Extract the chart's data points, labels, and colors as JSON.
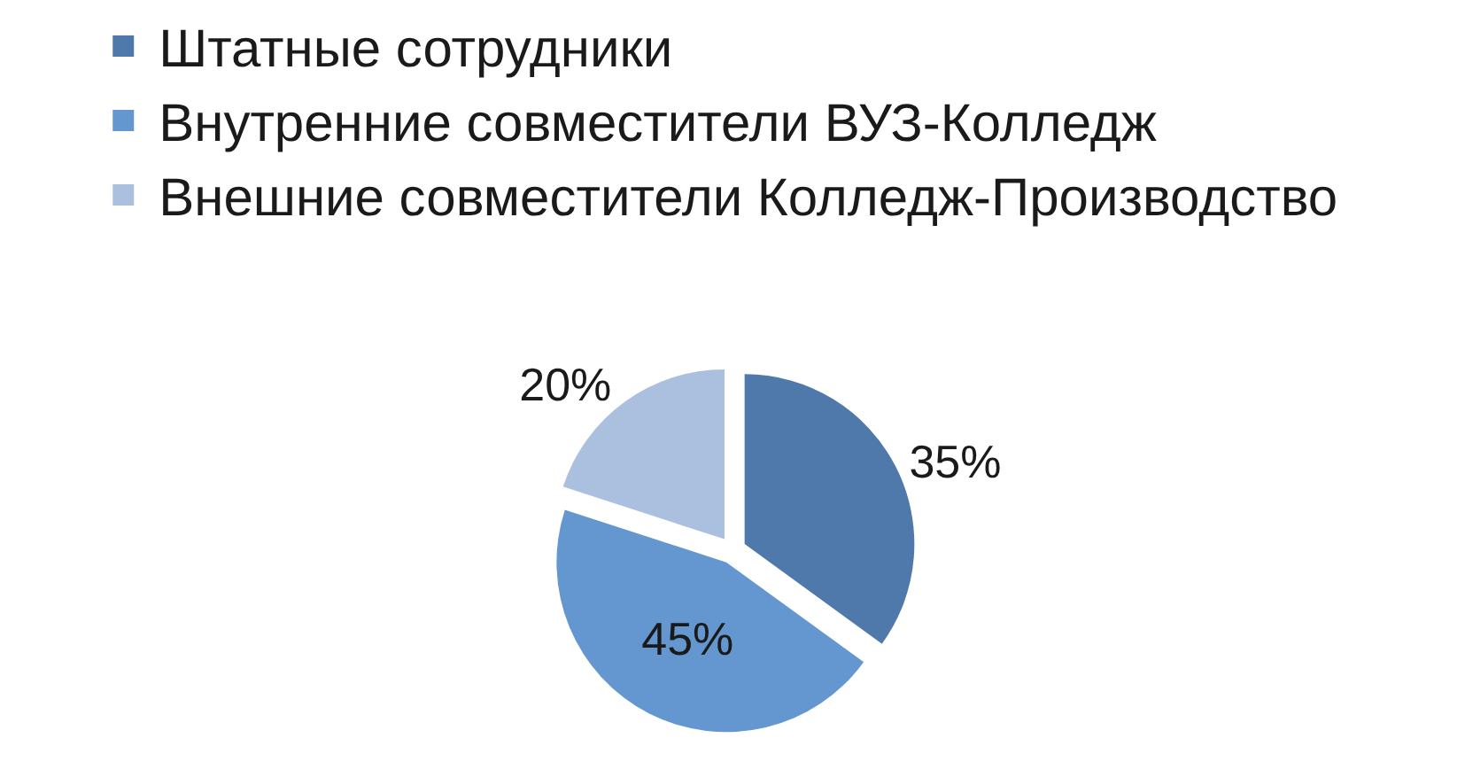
{
  "chart_data": {
    "type": "pie",
    "categories": [
      "Штатные сотрудники",
      "Внутренние совместители ВУЗ-Колледж",
      "Внешние совместители Колледж-Производство"
    ],
    "values": [
      35,
      45,
      20
    ],
    "colors": [
      "#4f79ab",
      "#6496d0",
      "#abc0df"
    ],
    "value_labels": [
      "35%",
      "45%",
      "20%"
    ],
    "legend": "top left"
  }
}
